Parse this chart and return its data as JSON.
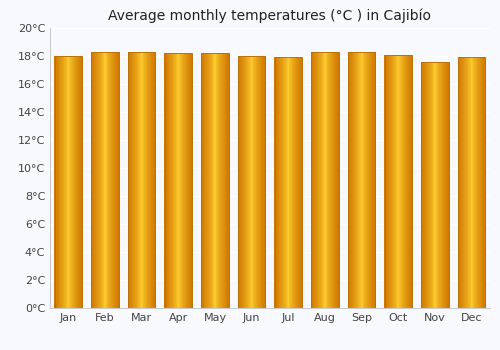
{
  "title": "Average monthly temperatures (°C ) in Cajibío",
  "months": [
    "Jan",
    "Feb",
    "Mar",
    "Apr",
    "May",
    "Jun",
    "Jul",
    "Aug",
    "Sep",
    "Oct",
    "Nov",
    "Dec"
  ],
  "values": [
    18.0,
    18.3,
    18.3,
    18.2,
    18.2,
    18.0,
    17.9,
    18.3,
    18.3,
    18.1,
    17.6,
    17.9
  ],
  "ylim": [
    0,
    20
  ],
  "yticks": [
    0,
    2,
    4,
    6,
    8,
    10,
    12,
    14,
    16,
    18,
    20
  ],
  "ytick_labels": [
    "0°C",
    "2°C",
    "4°C",
    "6°C",
    "8°C",
    "10°C",
    "12°C",
    "14°C",
    "16°C",
    "18°C",
    "20°C"
  ],
  "bar_color_dark": "#E8890A",
  "bar_color_mid": "#FFD040",
  "bar_color_light": "#FFC020",
  "bar_edge_color": "#B8720A",
  "background_color": "#f8f8ff",
  "grid_color": "#e8e8f0",
  "title_fontsize": 10,
  "tick_fontsize": 8
}
